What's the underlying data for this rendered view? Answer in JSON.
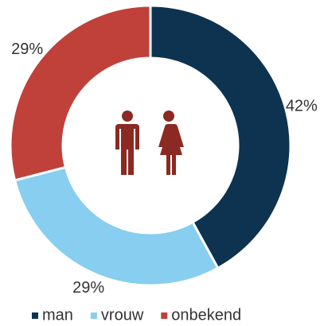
{
  "chart_data": {
    "type": "donut",
    "categories": [
      "man",
      "vrouw",
      "onbekend"
    ],
    "values": [
      42,
      29,
      29
    ],
    "value_labels": [
      "42%",
      "29%",
      "29%"
    ],
    "colors": [
      "#0d3350",
      "#87cef0",
      "#c0413a"
    ],
    "legend": "bottom"
  }
}
